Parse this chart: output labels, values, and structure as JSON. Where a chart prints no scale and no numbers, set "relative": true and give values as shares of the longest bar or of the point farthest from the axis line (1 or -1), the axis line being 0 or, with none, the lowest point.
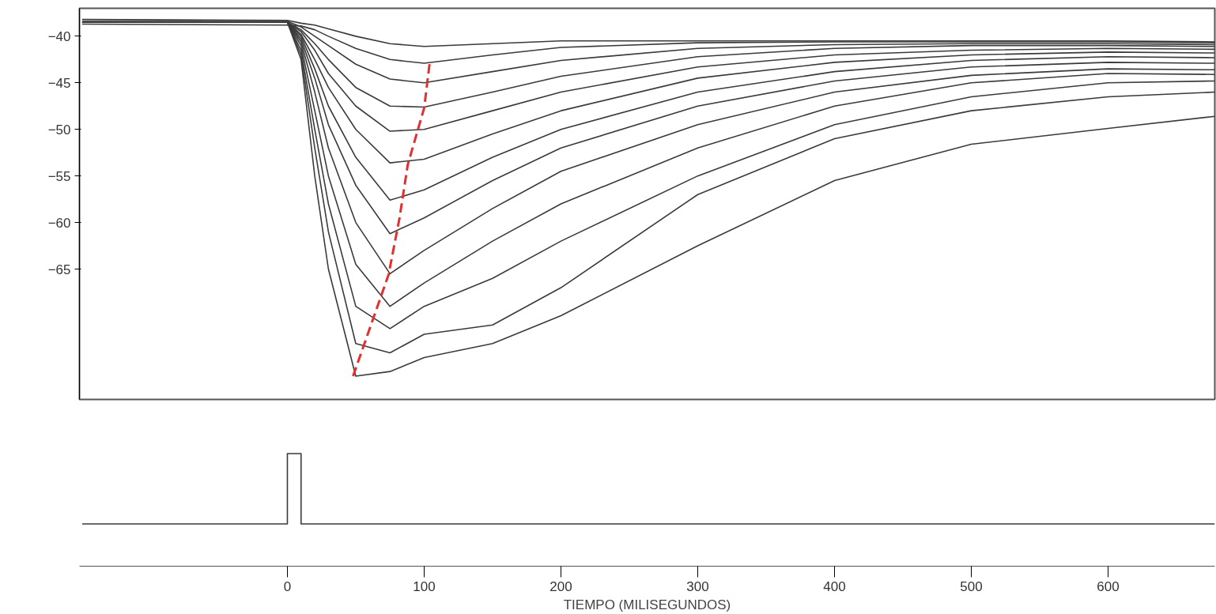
{
  "chart_data": [
    {
      "type": "line",
      "xlim": [
        -152,
        678
      ],
      "ylim": [
        -79,
        -37
      ],
      "yticks": [
        -40,
        -45,
        -50,
        -55,
        -60,
        -65
      ],
      "tick_labels": "y",
      "grid": false,
      "x": [
        -150,
        0,
        10,
        20,
        30,
        50,
        75,
        100,
        150,
        200,
        300,
        400,
        500,
        600,
        678
      ],
      "series": [
        {
          "color": "#3a3a3a",
          "values": [
            -38.2,
            -38.3,
            -38.6,
            -38.8,
            -39.2,
            -40,
            -40.8,
            -41.1,
            -40.8,
            -40.5,
            -40.5,
            -40.5,
            -40.5,
            -40.5,
            -40.6
          ]
        },
        {
          "color": "#3a3a3a",
          "values": [
            -38.7,
            -38.8,
            -38.9,
            -39.3,
            -40,
            -41.3,
            -42.5,
            -42.9,
            -42,
            -41.2,
            -40.7,
            -40.6,
            -40.6,
            -40.6,
            -40.7
          ]
        },
        {
          "color": "#3a3a3a",
          "values": [
            -38.4,
            -38.4,
            -39,
            -40,
            -41,
            -43,
            -44.6,
            -45,
            -43.8,
            -42.6,
            -41.3,
            -40.9,
            -40.8,
            -40.8,
            -40.9
          ]
        },
        {
          "color": "#3a3a3a",
          "values": [
            -38.5,
            -38.5,
            -39.3,
            -40.8,
            -42.5,
            -45.5,
            -47.5,
            -47.6,
            -46,
            -44.3,
            -42.2,
            -41.3,
            -41,
            -41,
            -41.1
          ]
        },
        {
          "color": "#3a3a3a",
          "values": [
            -38.5,
            -38.5,
            -39.5,
            -41.5,
            -44,
            -47.5,
            -50.2,
            -50,
            -48,
            -46,
            -43.3,
            -42,
            -41.5,
            -41.3,
            -41.4
          ]
        },
        {
          "color": "#3a3a3a",
          "values": [
            -38.5,
            -38.5,
            -39.8,
            -42.5,
            -45.5,
            -50,
            -53.6,
            -53.2,
            -50.5,
            -48,
            -44.5,
            -42.8,
            -42,
            -41.7,
            -41.8
          ]
        },
        {
          "color": "#3a3a3a",
          "values": [
            -38.5,
            -38.5,
            -40,
            -43.5,
            -47.5,
            -53,
            -57.6,
            -56.5,
            -53,
            -50,
            -46,
            -43.8,
            -42.6,
            -42.2,
            -42.3
          ]
        },
        {
          "color": "#3a3a3a",
          "values": [
            -38.5,
            -38.5,
            -40.3,
            -44.5,
            -49.5,
            -56,
            -61.2,
            -59.5,
            -55.5,
            -52,
            -47.5,
            -44.8,
            -43.3,
            -42.8,
            -42.9
          ]
        },
        {
          "color": "#3a3a3a",
          "values": [
            -38.5,
            -38.5,
            -40.6,
            -46,
            -52,
            -60,
            -65.5,
            -63,
            -58.5,
            -54.5,
            -49.5,
            -46,
            -44.2,
            -43.5,
            -43.6
          ]
        },
        {
          "color": "#3a3a3a",
          "values": [
            -38.5,
            -38.5,
            -41,
            -48,
            -55,
            -64.5,
            -69,
            -66.5,
            -62,
            -58,
            -52,
            -47.5,
            -45,
            -44,
            -44.1
          ]
        },
        {
          "color": "#3a3a3a",
          "values": [
            -38.5,
            -38.5,
            -41.5,
            -50,
            -58,
            -69,
            -71.4,
            -69,
            -66,
            -62,
            -55,
            -49.5,
            -46.5,
            -45,
            -44.8
          ]
        },
        {
          "color": "#3a3a3a",
          "values": [
            -38.5,
            -38.5,
            -42,
            -52,
            -61,
            -73,
            -74,
            -72,
            -71,
            -67,
            -57,
            -51,
            -48,
            -46.5,
            -46
          ]
        },
        {
          "color": "#3a3a3a",
          "values": [
            -38.5,
            -38.5,
            -42.5,
            -55,
            -65,
            -76.5,
            -76,
            -74.5,
            -73,
            -70,
            -62.5,
            -55.5,
            -51.6,
            -49.9,
            -48.6
          ]
        },
        {
          "color": "#e03030",
          "line_style": "dashed",
          "x": [
            48,
            74,
            82,
            88,
            100,
            104
          ],
          "values": [
            -76.5,
            -65.6,
            -59.5,
            -53.8,
            -47.7,
            -42.9
          ]
        }
      ]
    },
    {
      "type": "step",
      "relative": true,
      "xlim": [
        -152,
        678
      ],
      "xticks": [
        0,
        100,
        200,
        300,
        400,
        500,
        600
      ],
      "xlabel": "TIEMPO (MILISEGUNDOS)",
      "grid": false,
      "x": [
        -150,
        0,
        10,
        678
      ],
      "series": [
        {
          "color": "#3a3a3a",
          "values": [
            0,
            1,
            0,
            0
          ]
        }
      ]
    }
  ]
}
